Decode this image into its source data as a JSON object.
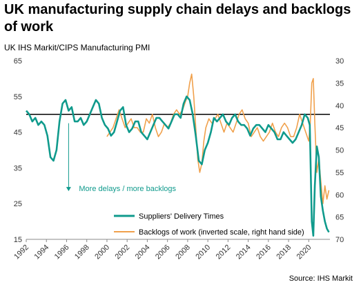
{
  "title": "UK manufacturing supply chain delays and backlogs of work",
  "subtitle": "UK IHS Markit/CIPS Manufacturing PMI",
  "source": "Source: IHS Markit",
  "annotation": "More delays / more backlogs",
  "colors": {
    "suppliers": "#0f9a8c",
    "backlogs": "#f0a04b",
    "reference": "#000000",
    "annotation": "#0f9a8c",
    "axis_text": "#333333"
  },
  "chart_data": {
    "type": "line",
    "title": "UK manufacturing supply chain delays and backlogs of work",
    "subtitle": "UK IHS Markit/CIPS Manufacturing PMI",
    "x_ticks": [
      "1992",
      "1994",
      "1996",
      "1998",
      "2000",
      "2002",
      "2004",
      "2006",
      "2008",
      "2010",
      "2012",
      "2014",
      "2016",
      "2018",
      "2020"
    ],
    "xlim": [
      1992,
      2022.1
    ],
    "y_left": {
      "ticks": [
        15,
        25,
        35,
        45,
        55,
        65
      ],
      "ylim": [
        15,
        65
      ]
    },
    "y_right": {
      "ticks": [
        30,
        35,
        40,
        45,
        50,
        55,
        60,
        65,
        70
      ],
      "ylim": [
        30,
        70
      ],
      "inverted": true
    },
    "reference_line": 50,
    "series": [
      {
        "name": "Suppliers' Delivery Times",
        "axis": "left",
        "color": "#0f9a8c",
        "x": [
          1992.0,
          1992.3,
          1992.6,
          1992.9,
          1993.2,
          1993.5,
          1993.8,
          1994.1,
          1994.4,
          1994.7,
          1995.0,
          1995.3,
          1995.6,
          1995.9,
          1996.2,
          1996.5,
          1996.8,
          1997.1,
          1997.4,
          1997.7,
          1998.0,
          1998.3,
          1998.6,
          1998.9,
          1999.2,
          1999.5,
          1999.8,
          2000.1,
          2000.4,
          2000.7,
          2001.0,
          2001.3,
          2001.6,
          2001.9,
          2002.2,
          2002.5,
          2002.8,
          2003.1,
          2003.4,
          2003.7,
          2004.0,
          2004.3,
          2004.6,
          2004.9,
          2005.2,
          2005.5,
          2005.8,
          2006.1,
          2006.4,
          2006.7,
          2007.0,
          2007.3,
          2007.6,
          2007.9,
          2008.2,
          2008.5,
          2008.8,
          2009.1,
          2009.4,
          2009.7,
          2010.0,
          2010.3,
          2010.6,
          2010.9,
          2011.2,
          2011.5,
          2011.8,
          2012.1,
          2012.4,
          2012.7,
          2013.0,
          2013.3,
          2013.6,
          2013.9,
          2014.2,
          2014.5,
          2014.8,
          2015.1,
          2015.4,
          2015.7,
          2016.0,
          2016.3,
          2016.6,
          2016.9,
          2017.2,
          2017.5,
          2017.8,
          2018.1,
          2018.4,
          2018.7,
          2019.0,
          2019.3,
          2019.6,
          2019.9,
          2020.1,
          2020.3,
          2020.45,
          2020.6,
          2020.8,
          2021.0,
          2021.2,
          2021.4,
          2021.6,
          2021.8,
          2022.0
        ],
        "y": [
          51,
          50,
          48,
          49,
          47,
          48,
          47,
          44,
          38,
          37,
          40,
          48,
          53,
          54,
          51,
          52,
          48,
          48,
          49,
          47,
          48,
          50,
          52,
          54,
          53,
          49,
          47,
          46,
          44,
          45,
          48,
          51,
          52,
          47,
          45,
          46,
          48,
          48,
          45,
          44,
          43,
          45,
          47,
          49,
          49,
          48,
          47,
          46,
          48,
          50,
          50,
          49,
          53,
          55,
          54,
          50,
          44,
          37,
          36,
          40,
          42,
          45,
          49,
          48,
          49,
          50,
          48,
          47,
          49,
          50,
          48,
          47,
          47,
          46,
          44,
          46,
          47,
          47,
          46,
          45,
          47,
          46,
          45,
          43,
          43,
          45,
          44,
          43,
          42,
          43,
          45,
          47,
          50,
          49,
          47,
          20,
          16,
          30,
          41,
          38,
          27,
          23,
          20,
          18,
          17
        ]
      },
      {
        "name": "Backlogs of work (inverted scale, right hand side)",
        "axis": "right",
        "color": "#f0a04b",
        "x": [
          2000.0,
          2000.3,
          2000.6,
          2000.9,
          2001.2,
          2001.5,
          2001.8,
          2002.1,
          2002.4,
          2002.7,
          2003.0,
          2003.3,
          2003.6,
          2003.9,
          2004.2,
          2004.5,
          2004.8,
          2005.1,
          2005.4,
          2005.7,
          2006.0,
          2006.3,
          2006.6,
          2006.9,
          2007.2,
          2007.5,
          2007.8,
          2008.0,
          2008.2,
          2008.4,
          2008.6,
          2008.8,
          2009.0,
          2009.2,
          2009.4,
          2009.6,
          2009.8,
          2010.1,
          2010.4,
          2010.7,
          2011.0,
          2011.3,
          2011.6,
          2011.9,
          2012.2,
          2012.5,
          2012.8,
          2013.1,
          2013.4,
          2013.7,
          2014.0,
          2014.3,
          2014.6,
          2014.9,
          2015.2,
          2015.5,
          2015.8,
          2016.1,
          2016.4,
          2016.7,
          2017.0,
          2017.3,
          2017.6,
          2017.9,
          2018.2,
          2018.5,
          2018.8,
          2019.1,
          2019.4,
          2019.7,
          2020.0,
          2020.15,
          2020.3,
          2020.45,
          2020.6,
          2020.8,
          2021.0,
          2021.2,
          2021.4,
          2021.6,
          2021.8,
          2022.0
        ],
        "y": [
          47,
          46,
          45,
          43,
          41,
          43,
          45,
          44,
          43,
          45,
          45,
          46,
          46,
          43,
          44,
          42,
          45,
          47,
          46,
          44,
          45,
          44,
          42,
          41,
          42,
          41,
          39,
          38,
          35,
          33,
          38,
          45,
          52,
          55,
          53,
          48,
          45,
          43,
          44,
          43,
          42,
          44,
          46,
          44,
          45,
          46,
          44,
          42,
          41,
          43,
          44,
          47,
          46,
          45,
          47,
          48,
          47,
          46,
          44,
          46,
          47,
          45,
          44,
          45,
          47,
          47,
          45,
          42,
          44,
          46,
          48,
          44,
          35,
          34,
          44,
          55,
          52,
          57,
          62,
          58,
          61,
          59
        ]
      }
    ],
    "legend": {
      "position": "bottom-center",
      "entries": [
        "Suppliers' Delivery Times",
        "Backlogs of work (inverted scale, right hand side)"
      ]
    },
    "grid": false
  }
}
